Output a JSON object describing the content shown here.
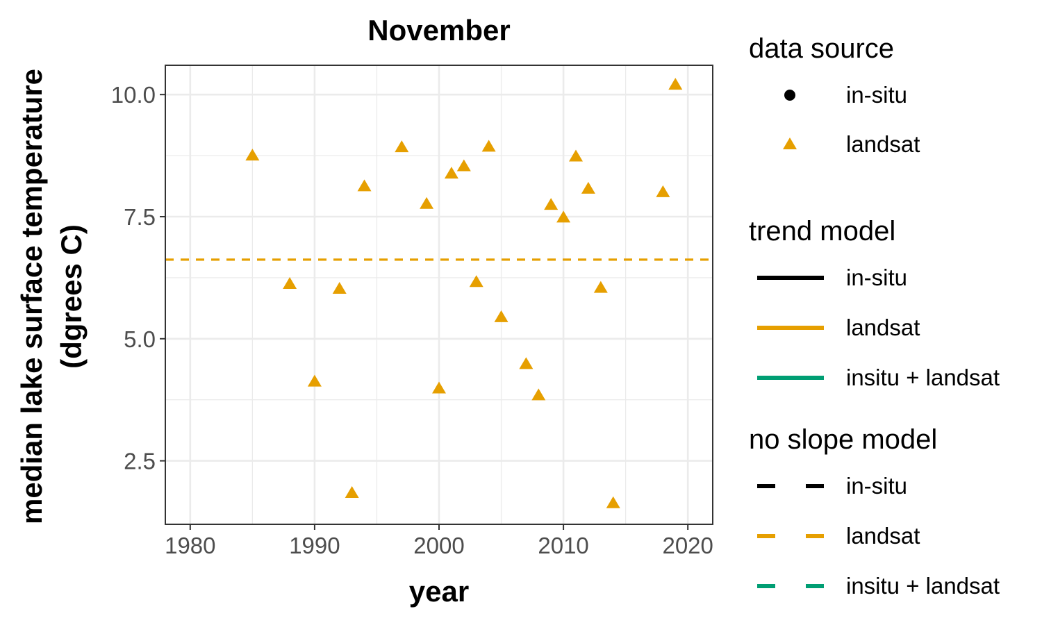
{
  "chart_data": {
    "type": "scatter",
    "title": "November",
    "xlabel": "year",
    "ylabel_lines": [
      "median lake surface temperature",
      "(dgrees C)"
    ],
    "xlim": [
      1978,
      2022
    ],
    "ylim": [
      1.2,
      10.6
    ],
    "x_ticks": [
      1980,
      1990,
      2000,
      2010,
      2020
    ],
    "x_tick_labels": [
      "1980",
      "1990",
      "2000",
      "2010",
      "2020"
    ],
    "y_ticks": [
      2.5,
      5.0,
      7.5,
      10.0
    ],
    "y_tick_labels": [
      "2.5",
      "5.0",
      "7.5",
      "10.0"
    ],
    "grid": true,
    "series": [
      {
        "name": "landsat",
        "marker": "triangle",
        "color": "#E69F00",
        "x": [
          1985,
          1988,
          1990,
          1992,
          1993,
          1994,
          1997,
          1999,
          2000,
          2001,
          2002,
          2003,
          2004,
          2005,
          2007,
          2008,
          2009,
          2010,
          2011,
          2012,
          2013,
          2014,
          2018,
          2019
        ],
        "y": [
          8.75,
          6.12,
          4.12,
          6.02,
          1.84,
          8.12,
          8.92,
          7.76,
          3.98,
          8.38,
          8.53,
          6.16,
          8.93,
          5.44,
          4.48,
          3.84,
          7.74,
          7.48,
          8.73,
          8.07,
          6.04,
          1.63,
          8.0,
          10.2
        ]
      }
    ],
    "reference_lines": [
      {
        "series": "landsat",
        "model": "no slope",
        "style": "dashed",
        "color": "#E69F00",
        "y": 6.62
      }
    ],
    "legend": {
      "placement": "right",
      "groups": [
        {
          "title": "data source",
          "items": [
            {
              "label": "in-situ",
              "symbol": "circle",
              "color": "#000000"
            },
            {
              "label": "landsat",
              "symbol": "triangle",
              "color": "#E69F00"
            }
          ]
        },
        {
          "title": "trend model",
          "items": [
            {
              "label": "in-situ",
              "symbol": "solid-line",
              "color": "#000000"
            },
            {
              "label": "landsat",
              "symbol": "solid-line",
              "color": "#E69F00"
            },
            {
              "label": "insitu + landsat",
              "symbol": "solid-line",
              "color": "#009E73"
            }
          ]
        },
        {
          "title": "no slope model",
          "items": [
            {
              "label": "in-situ",
              "symbol": "dashed-line",
              "color": "#000000"
            },
            {
              "label": "landsat",
              "symbol": "dashed-line",
              "color": "#E69F00"
            },
            {
              "label": "insitu + landsat",
              "symbol": "dashed-line",
              "color": "#009E73"
            }
          ]
        }
      ]
    }
  }
}
